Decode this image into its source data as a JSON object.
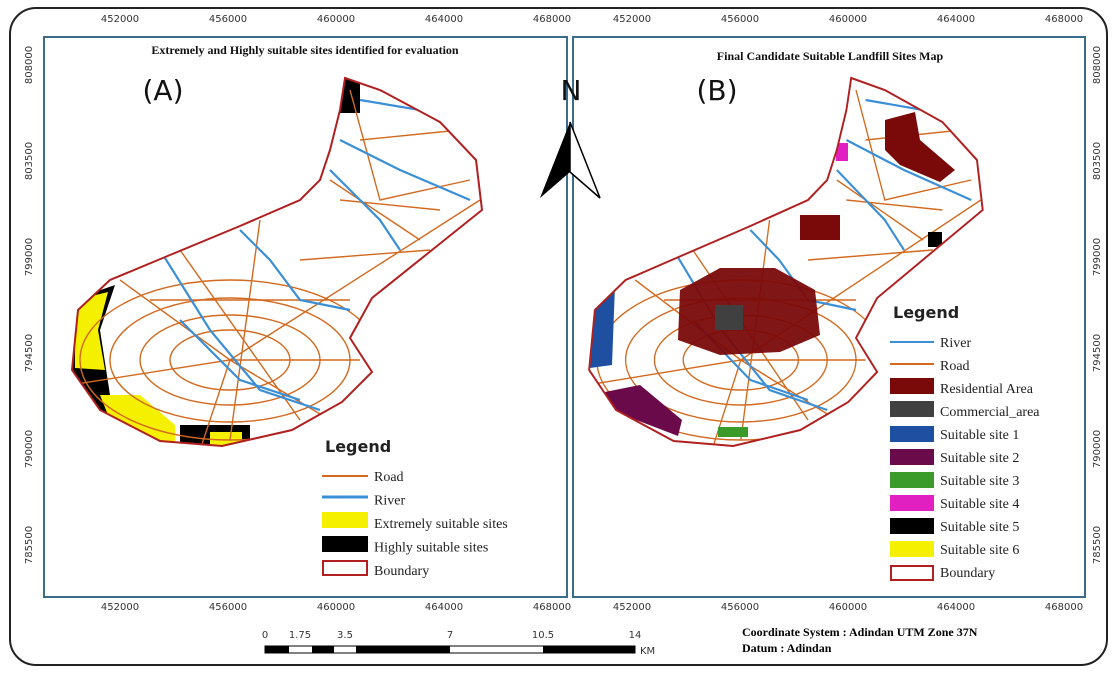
{
  "panel_a": {
    "label": "(A)",
    "title": "Extremely and Highly suitable sites identified for evaluation",
    "x_ticks": [
      452000,
      456000,
      460000,
      464000,
      468000
    ],
    "y_ticks": [
      808000,
      803500,
      799000,
      794500,
      790000,
      785500
    ],
    "legend": {
      "title": "Legend",
      "items": [
        "Road",
        "River",
        "Extremely suitable sites",
        "Highly suitable sites",
        "Boundary"
      ]
    }
  },
  "panel_b": {
    "label": "(B)",
    "title": "Final Candidate Suitable Landfill Sites Map",
    "x_ticks": [
      452000,
      456000,
      460000,
      464000,
      468000
    ],
    "y_ticks": [
      808000,
      803500,
      799000,
      794500,
      790000,
      785500
    ],
    "legend": {
      "title": "Legend",
      "items": [
        "River",
        "Road",
        "Residential Area",
        "Commercial_area",
        "Suitable site 1",
        "Suitable site 2",
        "Suitable site 3",
        "Suitable site 4",
        "Suitable site 5",
        "Suitable site 6",
        "Boundary"
      ]
    }
  },
  "north": "N",
  "scale_bar": {
    "ticks": [
      0,
      1.75,
      3.5,
      7,
      10.5,
      14
    ],
    "unit": "KM"
  },
  "coordinate_system": "Coordinate System : Adindan UTM Zone 37N",
  "datum": "Datum : Adindan"
}
